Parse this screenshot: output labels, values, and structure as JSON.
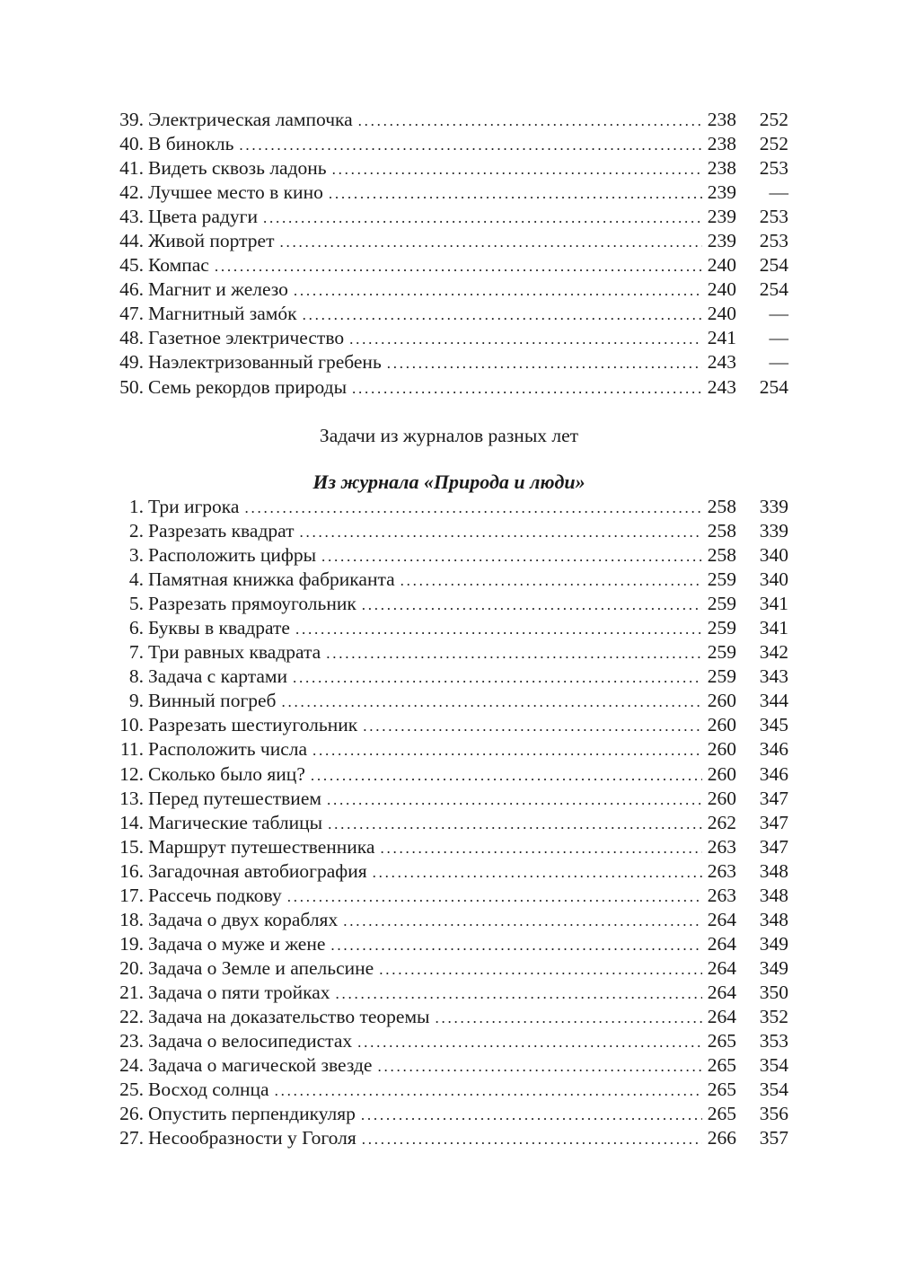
{
  "section1": {
    "items": [
      {
        "num": "39.",
        "title": "Электрическая лампочка",
        "page": "238",
        "answer": "252"
      },
      {
        "num": "40.",
        "title": "В бинокль",
        "page": "238",
        "answer": "252"
      },
      {
        "num": "41.",
        "title": "Видеть сквозь ладонь",
        "page": "238",
        "answer": "253"
      },
      {
        "num": "42.",
        "title": "Лучшее место в кино",
        "page": "239",
        "answer": "—"
      },
      {
        "num": "43.",
        "title": "Цвета радуги",
        "page": "239",
        "answer": "253"
      },
      {
        "num": "44.",
        "title": "Живой портрет",
        "page": "239",
        "answer": "253"
      },
      {
        "num": "45.",
        "title": "Компас",
        "page": "240",
        "answer": "254"
      },
      {
        "num": "46.",
        "title": "Магнит и железо",
        "page": "240",
        "answer": "254"
      },
      {
        "num": "47.",
        "title": "Магнитный замóк",
        "page": "240",
        "answer": "—"
      },
      {
        "num": "48.",
        "title": "Газетное электричество",
        "page": "241",
        "answer": "—"
      },
      {
        "num": "49.",
        "title": "Наэлектризованный гребень",
        "page": "243",
        "answer": "—"
      },
      {
        "num": "50.",
        "title": "Семь рекордов природы",
        "page": "243",
        "answer": "254"
      }
    ]
  },
  "section2": {
    "heading": "Задачи из журналов разных лет",
    "subheading": "Из журнала «Природа и люди»",
    "items": [
      {
        "num": "1.",
        "title": "Три игрока",
        "page": "258",
        "answer": "339"
      },
      {
        "num": "2.",
        "title": "Разрезать квадрат",
        "page": "258",
        "answer": "339"
      },
      {
        "num": "3.",
        "title": "Расположить цифры",
        "page": "258",
        "answer": "340"
      },
      {
        "num": "4.",
        "title": "Памятная книжка фабриканта",
        "page": "259",
        "answer": "340"
      },
      {
        "num": "5.",
        "title": "Разрезать прямоугольник",
        "page": "259",
        "answer": "341"
      },
      {
        "num": "6.",
        "title": "Буквы в квадрате",
        "page": "259",
        "answer": "341"
      },
      {
        "num": "7.",
        "title": "Три равных квадрата",
        "page": "259",
        "answer": "342"
      },
      {
        "num": "8.",
        "title": "Задача с картами",
        "page": "259",
        "answer": "343"
      },
      {
        "num": "9.",
        "title": "Винный погреб",
        "page": "260",
        "answer": "344"
      },
      {
        "num": "10.",
        "title": "Разрезать шестиугольник",
        "page": "260",
        "answer": "345"
      },
      {
        "num": "11.",
        "title": "Расположить числа",
        "page": "260",
        "answer": "346"
      },
      {
        "num": "12.",
        "title": "Сколько было яиц?",
        "page": "260",
        "answer": "346"
      },
      {
        "num": "13.",
        "title": "Перед путешествием",
        "page": "260",
        "answer": "347"
      },
      {
        "num": "14.",
        "title": "Магические таблицы",
        "page": "262",
        "answer": "347"
      },
      {
        "num": "15.",
        "title": "Маршрут путешественника",
        "page": "263",
        "answer": "347"
      },
      {
        "num": "16.",
        "title": "Загадочная автобиография",
        "page": "263",
        "answer": "348"
      },
      {
        "num": "17.",
        "title": "Рассечь подкову",
        "page": "263",
        "answer": "348"
      },
      {
        "num": "18.",
        "title": "Задача о двух кораблях",
        "page": "264",
        "answer": "348"
      },
      {
        "num": "19.",
        "title": "Задача о муже и жене",
        "page": "264",
        "answer": "349"
      },
      {
        "num": "20.",
        "title": "Задача о Земле и апельсине",
        "page": "264",
        "answer": "349"
      },
      {
        "num": "21.",
        "title": "Задача о пяти тройках",
        "page": "264",
        "answer": "350"
      },
      {
        "num": "22.",
        "title": "Задача на доказательство теоремы",
        "page": "264",
        "answer": "352"
      },
      {
        "num": "23.",
        "title": "Задача о велосипедистах",
        "page": "265",
        "answer": "353"
      },
      {
        "num": "24.",
        "title": "Задача о магической звезде",
        "page": "265",
        "answer": "354"
      },
      {
        "num": "25.",
        "title": "Восход солнца",
        "page": "265",
        "answer": "354"
      },
      {
        "num": "26.",
        "title": "Опустить перпендикуляр",
        "page": "265",
        "answer": "356"
      },
      {
        "num": "27.",
        "title": "Несообразности у Гоголя",
        "page": "266",
        "answer": "357"
      }
    ]
  }
}
